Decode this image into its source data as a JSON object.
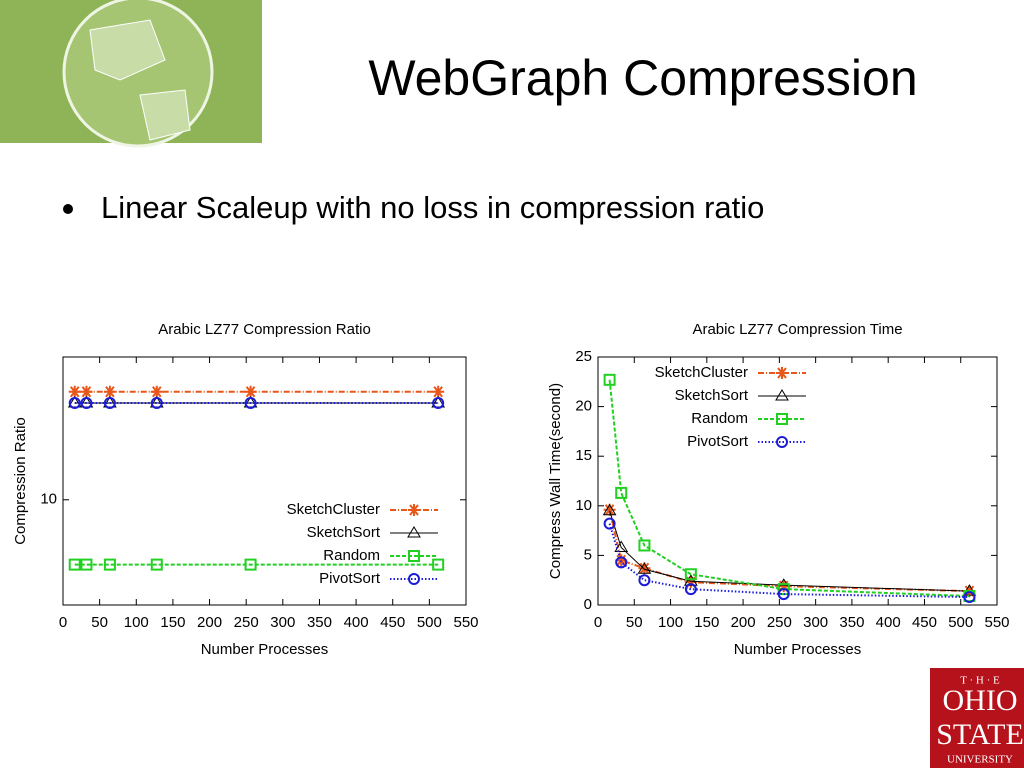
{
  "slide": {
    "title": "WebGraph Compression",
    "bullet": "Linear Scaleup with no loss in compression ratio",
    "logo": {
      "top": "T · H · E",
      "line1": "OHIO",
      "line2": "STATE",
      "line3": "UNIVERSITY"
    }
  },
  "chart_data": [
    {
      "type": "line",
      "title": "Arabic LZ77 Compression Ratio",
      "x_label": "Number Processes",
      "y_label": "Compression Ratio",
      "x": [
        16,
        32,
        64,
        128,
        256,
        512
      ],
      "xlim": [
        0,
        550
      ],
      "xticks": [
        0,
        50,
        100,
        150,
        200,
        250,
        300,
        350,
        400,
        450,
        500,
        550
      ],
      "ylim": [
        6,
        20
      ],
      "yticks": [
        10
      ],
      "log_y": true,
      "legend": "lower right",
      "series": [
        {
          "name": "SketchCluster",
          "color": "#e8561a",
          "marker": "asterisk",
          "dash": "6 2 1 2",
          "values": [
            16.9,
            16.9,
            16.9,
            16.9,
            16.9,
            16.9
          ]
        },
        {
          "name": "SketchSort",
          "color": "#000000",
          "marker": "triangle",
          "dash": "none",
          "values": [
            16.0,
            16.0,
            16.0,
            16.0,
            16.0,
            16.0
          ]
        },
        {
          "name": "Random",
          "color": "#22d022",
          "marker": "square",
          "dash": "4 2",
          "values": [
            7.3,
            7.3,
            7.3,
            7.3,
            7.3,
            7.3
          ]
        },
        {
          "name": "PivotSort",
          "color": "#1c1cd8",
          "marker": "circle",
          "dash": "1.5 2",
          "values": [
            16.0,
            16.0,
            16.0,
            16.0,
            16.0,
            16.0
          ]
        }
      ]
    },
    {
      "type": "line",
      "title": "Arabic LZ77 Compression Time",
      "x_label": "Number Processes",
      "y_label": "Compress Wall Time(second)",
      "x": [
        16,
        32,
        64,
        128,
        256,
        512
      ],
      "xlim": [
        0,
        550
      ],
      "xticks": [
        0,
        50,
        100,
        150,
        200,
        250,
        300,
        350,
        400,
        450,
        500,
        550
      ],
      "ylim": [
        0,
        25
      ],
      "yticks": [
        0,
        5,
        10,
        15,
        20,
        25
      ],
      "log_y": false,
      "legend": "upper left",
      "series": [
        {
          "name": "SketchCluster",
          "color": "#e8561a",
          "marker": "asterisk",
          "dash": "6 2 1 2",
          "values": [
            9.6,
            4.5,
            3.7,
            2.3,
            1.9,
            1.4
          ]
        },
        {
          "name": "SketchSort",
          "color": "#000000",
          "marker": "triangle",
          "dash": "none",
          "values": [
            9.5,
            5.8,
            3.6,
            2.4,
            2.0,
            1.4
          ]
        },
        {
          "name": "Random",
          "color": "#22d022",
          "marker": "square",
          "dash": "4 2",
          "values": [
            22.7,
            11.3,
            6.0,
            3.1,
            1.6,
            0.9
          ]
        },
        {
          "name": "PivotSort",
          "color": "#1c1cd8",
          "marker": "circle",
          "dash": "1.5 2",
          "values": [
            8.2,
            4.3,
            2.5,
            1.6,
            1.1,
            0.8
          ]
        }
      ]
    }
  ]
}
